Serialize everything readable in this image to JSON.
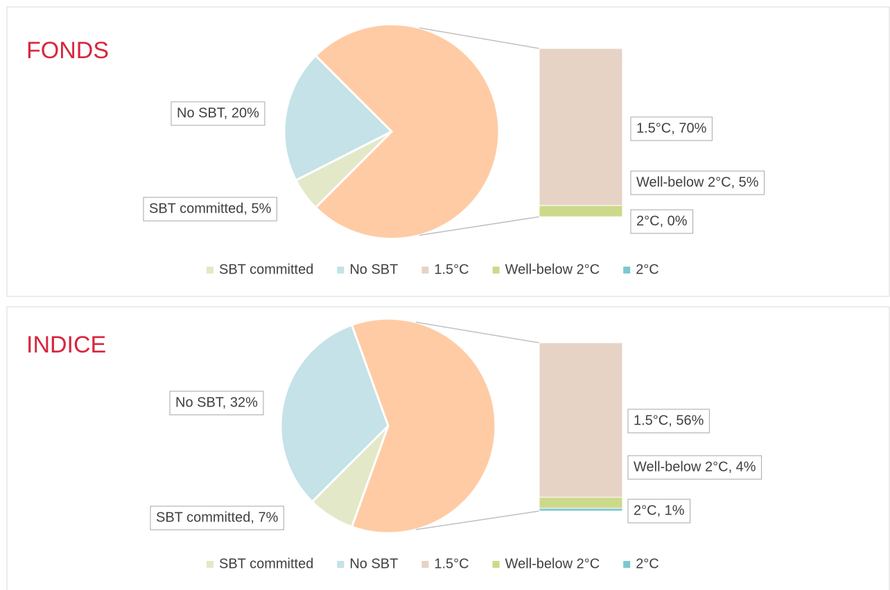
{
  "chart_data": [
    {
      "type": "pie",
      "title": "FONDS",
      "other_color": "#ffcba4",
      "pie": {
        "categories": [
          "SBT committed",
          "No SBT"
        ],
        "values": [
          5,
          20
        ],
        "value_labels": [
          "SBT committed, 5%",
          "No SBT, 20%"
        ],
        "colors": [
          "#e3e8c8",
          "#c4e2e8"
        ]
      },
      "bar": {
        "categories": [
          "1.5°C",
          "Well-below 2°C",
          "2°C"
        ],
        "values": [
          70,
          5,
          0
        ],
        "value_labels": [
          "1.5°C, 70%",
          "Well-below 2°C, 5%",
          "2°C, 0%"
        ],
        "colors": [
          "#e6d3c5",
          "#cdd98a",
          "#7dc8d0"
        ]
      }
    },
    {
      "type": "pie",
      "title": "INDICE",
      "other_color": "#ffcba4",
      "pie": {
        "categories": [
          "SBT committed",
          "No SBT"
        ],
        "values": [
          7,
          32
        ],
        "value_labels": [
          "SBT committed, 7%",
          "No SBT, 32%"
        ],
        "colors": [
          "#e3e8c8",
          "#c4e2e8"
        ]
      },
      "bar": {
        "categories": [
          "1.5°C",
          "Well-below 2°C",
          "2°C"
        ],
        "values": [
          56,
          4,
          1
        ],
        "value_labels": [
          "1.5°C, 56%",
          "Well-below 2°C, 4%",
          "2°C, 1%"
        ],
        "colors": [
          "#e6d3c5",
          "#cdd98a",
          "#7dc8d0"
        ]
      }
    }
  ]
}
